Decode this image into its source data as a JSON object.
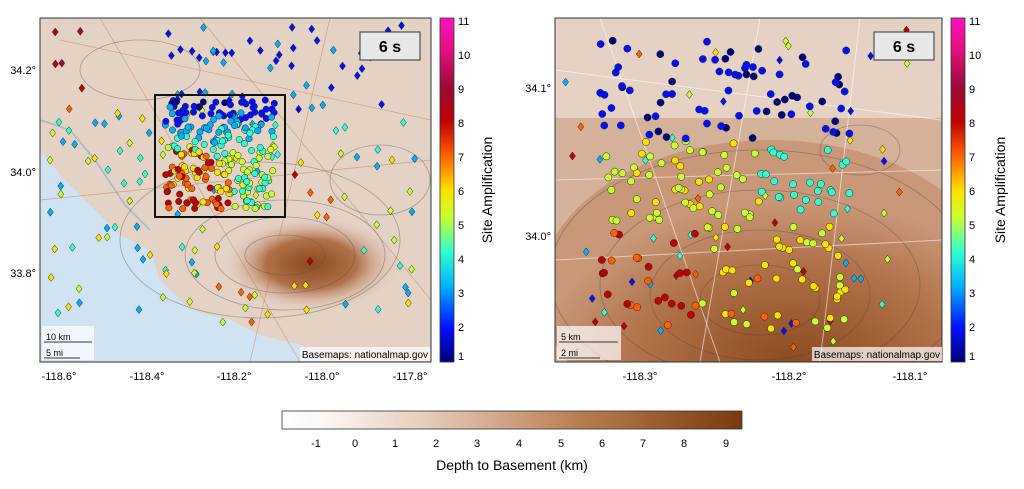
{
  "left_map": {
    "period_label": "6 s",
    "y_ticks": [
      "34.2°",
      "34.0°",
      "33.8°"
    ],
    "x_ticks": [
      "-118.6°",
      "-118.4°",
      "-118.2°",
      "-118.0°",
      "-117.8°"
    ],
    "scale_km": "10 km",
    "scale_mi": "5 mi",
    "credit": "Basemaps: nationalmap.gov",
    "colorbar_label": "Site Amplification",
    "colorbar_ticks": [
      "11",
      "10",
      "9",
      "8",
      "7",
      "6",
      "5",
      "4",
      "3",
      "2",
      "1"
    ]
  },
  "right_map": {
    "period_label": "6 s",
    "y_ticks": [
      "34.1°",
      "34.0°"
    ],
    "x_ticks": [
      "-118.3°",
      "-118.2°",
      "-118.1°"
    ],
    "scale_km": "5 km",
    "scale_mi": "2 mi",
    "credit": "Basemaps: nationalmap.gov",
    "colorbar_label": "Site Amplification",
    "colorbar_ticks": [
      "11",
      "10",
      "9",
      "8",
      "7",
      "6",
      "5",
      "4",
      "3",
      "2",
      "1"
    ]
  },
  "depth_colorbar": {
    "label": "Depth to Basement (km)",
    "ticks": [
      "-1",
      "0",
      "1",
      "2",
      "3",
      "4",
      "5",
      "6",
      "7",
      "8",
      "9"
    ]
  },
  "colors": {
    "ocean": "#cfe3f3",
    "land": "#e8d6c8",
    "basin_deep": "#8b4a1e",
    "basin_mid": "#c28a64"
  }
}
